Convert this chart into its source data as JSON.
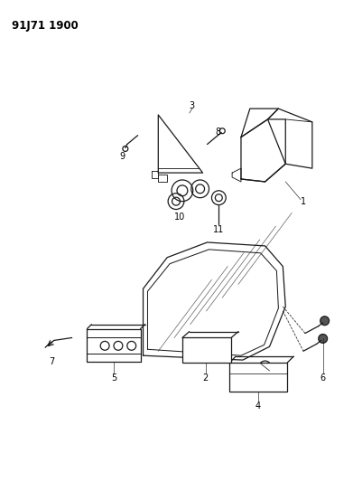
{
  "title": "91J71 1900",
  "background_color": "#ffffff",
  "line_color": "#1a1a1a",
  "text_color": "#000000",
  "figsize": [
    3.91,
    5.33
  ],
  "dpi": 100
}
